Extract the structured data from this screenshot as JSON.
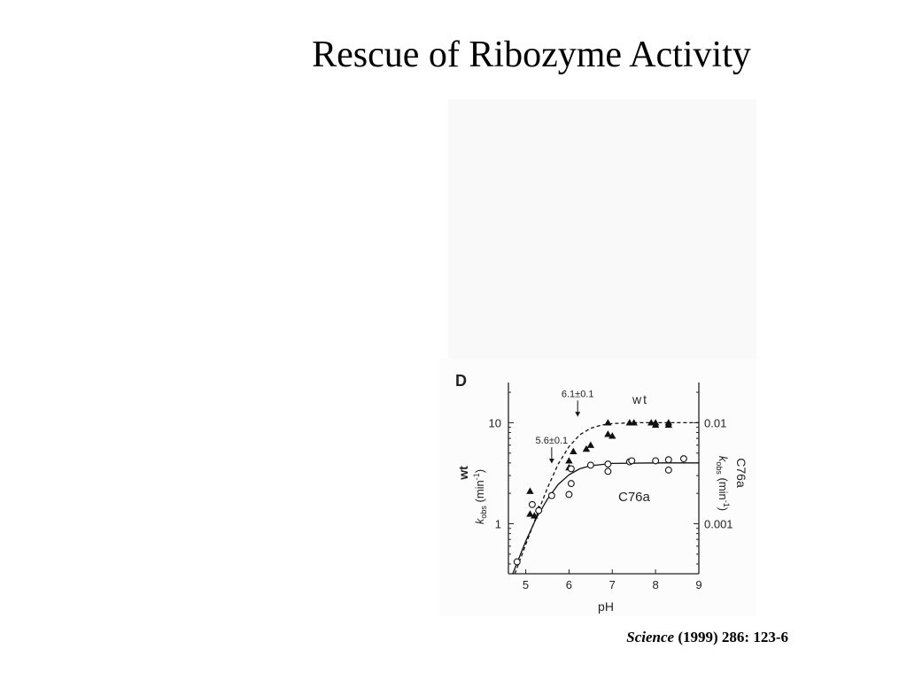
{
  "title": "Rescue of Ribozyme Activity",
  "citation": {
    "journal": "Science",
    "details": "(1999) 286:  123-6"
  },
  "chart_data": {
    "type": "scatter",
    "panel_label": "D",
    "xlabel": "pH",
    "x_ticks": [
      5,
      6,
      7,
      8,
      9
    ],
    "xlim": [
      4.6,
      9
    ],
    "y_scale": "log",
    "ylim": [
      0.32,
      25
    ],
    "y_left": {
      "label_main": "wt",
      "label_k": "k",
      "label_sub": "obs",
      "label_unit": " (min",
      "label_exp": "-1",
      "label_close": ")",
      "ticks": [
        1,
        10
      ],
      "tick_labels": [
        "1",
        "10"
      ]
    },
    "y_right": {
      "label_main": "C76a",
      "label_k": "k",
      "label_sub": "obs",
      "label_unit": " (min",
      "label_exp": "-1",
      "label_close": ")",
      "ticks": [
        1,
        10
      ],
      "tick_labels": [
        "0.001",
        "0.01"
      ]
    },
    "annotations": [
      {
        "text": "6.1±0.1",
        "x": 6.2,
        "y": 18
      },
      {
        "text": "5.6±0.1",
        "x": 5.6,
        "y": 6.2
      }
    ],
    "series": [
      {
        "name": "wt",
        "marker": "triangle",
        "fit": "dashed",
        "points": [
          [
            5.1,
            2.1
          ],
          [
            5.1,
            1.25
          ],
          [
            5.2,
            1.2
          ],
          [
            5.3,
            1.4
          ],
          [
            6.0,
            4.2
          ],
          [
            6.0,
            3.6
          ],
          [
            6.1,
            5.2
          ],
          [
            6.4,
            5.5
          ],
          [
            6.5,
            6.0
          ],
          [
            6.9,
            10
          ],
          [
            6.9,
            7.7
          ],
          [
            7.0,
            7.4
          ],
          [
            7.4,
            10
          ],
          [
            7.5,
            10
          ],
          [
            7.9,
            10
          ],
          [
            8.0,
            9.5
          ],
          [
            8.0,
            10
          ],
          [
            8.3,
            10
          ],
          [
            8.3,
            9.5
          ]
        ],
        "fit_curve": [
          [
            4.75,
            0.32
          ],
          [
            5.0,
            0.62
          ],
          [
            5.25,
            1.2
          ],
          [
            5.5,
            2.25
          ],
          [
            5.75,
            3.9
          ],
          [
            6.0,
            5.8
          ],
          [
            6.25,
            7.6
          ],
          [
            6.5,
            8.8
          ],
          [
            6.75,
            9.5
          ],
          [
            7.0,
            9.8
          ],
          [
            7.5,
            10
          ],
          [
            9.0,
            10
          ]
        ]
      },
      {
        "name": "C76a",
        "marker": "circle",
        "fit": "solid",
        "points": [
          [
            4.8,
            0.42
          ],
          [
            5.15,
            1.55
          ],
          [
            5.3,
            1.35
          ],
          [
            5.6,
            1.9
          ],
          [
            6.0,
            1.95
          ],
          [
            6.05,
            2.5
          ],
          [
            6.05,
            3.5
          ],
          [
            6.5,
            3.8
          ],
          [
            6.9,
            3.9
          ],
          [
            6.9,
            3.3
          ],
          [
            7.4,
            4.1
          ],
          [
            7.45,
            4.2
          ],
          [
            8.0,
            4.2
          ],
          [
            8.3,
            4.3
          ],
          [
            8.3,
            3.4
          ],
          [
            8.65,
            4.4
          ]
        ],
        "fit_curve": [
          [
            4.7,
            0.32
          ],
          [
            5.0,
            0.67
          ],
          [
            5.25,
            1.15
          ],
          [
            5.5,
            1.75
          ],
          [
            5.75,
            2.45
          ],
          [
            6.0,
            3.05
          ],
          [
            6.25,
            3.5
          ],
          [
            6.5,
            3.75
          ],
          [
            7.0,
            3.95
          ],
          [
            8.0,
            4.0
          ],
          [
            9.0,
            4.0
          ]
        ]
      }
    ]
  }
}
